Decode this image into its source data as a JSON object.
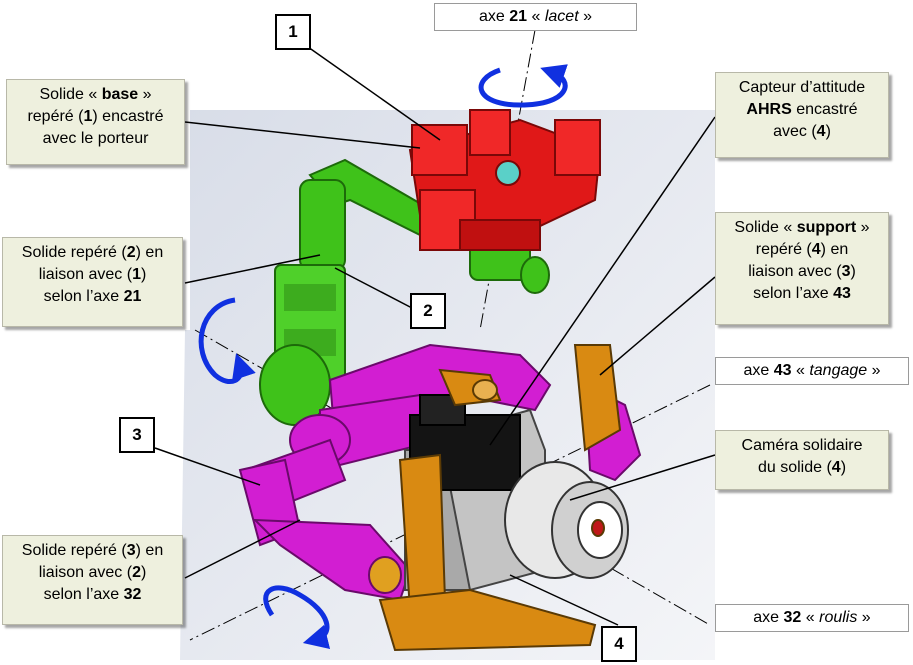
{
  "callouts": {
    "base": {
      "pre": "Solide « ",
      "bold": "base",
      "post": " »",
      "line2_pre": "repéré (",
      "line2_bold": "1",
      "line2_post": ") encastré",
      "line3": "avec le porteur"
    },
    "solide2": {
      "line1_pre": "Solide repéré (",
      "line1_bold": "2",
      "line1_post": ") en",
      "line2_pre": "liaison avec (",
      "line2_bold": "1",
      "line2_post": ")",
      "line3_pre": "selon l’axe ",
      "line3_bold": "21"
    },
    "solide3": {
      "line1_pre": "Solide repéré (",
      "line1_bold": "3",
      "line1_post": ") en",
      "line2_pre": "liaison avec (",
      "line2_bold": "2",
      "line2_post": ")",
      "line3_pre": "selon l’axe ",
      "line3_bold": "32"
    },
    "capteur": {
      "line1": "Capteur d’attitude",
      "line2_bold": "AHRS",
      "line2_post": " encastré",
      "line3_pre": "avec (",
      "line3_bold": "4",
      "line3_post": ")"
    },
    "support": {
      "line1_pre": "Solide « ",
      "line1_bold": "support",
      "line1_post": " »",
      "line2_pre": "repéré (",
      "line2_bold": "4",
      "line2_post": ") en",
      "line3_pre": "liaison avec (",
      "line3_bold": "3",
      "line3_post": ")",
      "line4_pre": "selon l’axe ",
      "line4_bold": "43"
    },
    "camera": {
      "line1": "Caméra solidaire",
      "line2_pre": "du solide (",
      "line2_bold": "4",
      "line2_post": ")"
    }
  },
  "axes": {
    "lacet": {
      "pre": "axe ",
      "bold": "21",
      "mid": " « ",
      "italic": "lacet",
      "post": " »"
    },
    "tangage": {
      "pre": "axe ",
      "bold": "43",
      "mid": " « ",
      "italic": "tangage",
      "post": " »"
    },
    "roulis": {
      "pre": "axe ",
      "bold": "32",
      "mid": " « ",
      "italic": "roulis",
      "post": " »"
    }
  },
  "numbers": {
    "n1": "1",
    "n2": "2",
    "n3": "3",
    "n4": "4"
  },
  "colors": {
    "base": "#e01818",
    "solide2": "#3fc21a",
    "solide3": "#d21ed2",
    "support": "#d98a12",
    "camera_body": "#a9a9a9",
    "sensor": "#141414",
    "arrows": "#1030e0",
    "callout_bg": "#eef0de"
  }
}
